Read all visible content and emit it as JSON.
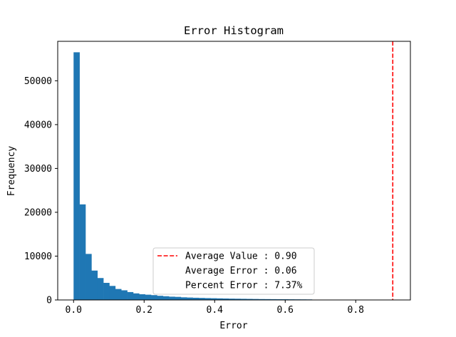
{
  "chart_data": {
    "type": "bar",
    "title": "Error Histogram",
    "xlabel": "Error",
    "ylabel": "Frequency",
    "xlim": [
      -0.045,
      0.955
    ],
    "ylim": [
      0,
      59000
    ],
    "xticks": [
      0.0,
      0.2,
      0.4,
      0.6,
      0.8
    ],
    "xtick_labels": [
      "0.0",
      "0.2",
      "0.4",
      "0.6",
      "0.8"
    ],
    "yticks": [
      0,
      10000,
      20000,
      30000,
      40000,
      50000
    ],
    "ytick_labels": [
      "0",
      "10000",
      "20000",
      "30000",
      "40000",
      "50000"
    ],
    "bar_color": "#1f77b4",
    "bin_start": 0.0,
    "bin_width": 0.0169,
    "values": [
      56500,
      21800,
      10500,
      6700,
      5000,
      3900,
      3200,
      2500,
      2200,
      1800,
      1500,
      1300,
      1200,
      1100,
      950,
      850,
      750,
      700,
      600,
      550,
      500,
      460,
      420,
      390,
      360,
      330,
      300,
      280,
      260,
      240,
      220,
      200,
      190,
      180,
      170,
      160,
      150,
      140,
      130,
      120
    ],
    "reference_line": {
      "x": 0.905,
      "color": "#ff0000",
      "style": "dashed"
    },
    "legend": {
      "position": "lower center",
      "entries": [
        {
          "label": "Average Value : 0.90",
          "marker": "dashed-line",
          "color": "#ff0000"
        },
        {
          "label": "Average Error : 0.06",
          "marker": "none"
        },
        {
          "label": "Percent Error : 7.37%",
          "marker": "none"
        }
      ]
    }
  }
}
